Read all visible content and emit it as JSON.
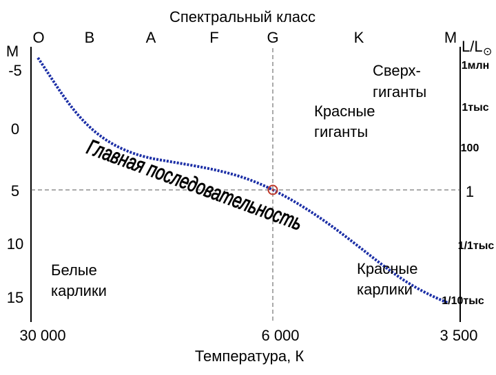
{
  "diagram": {
    "top_axis_title": "Спектральный класс",
    "spectral_classes": [
      "O",
      "B",
      "A",
      "F",
      "G",
      "K",
      "M"
    ],
    "left_axis_title": "M",
    "left_ticks": [
      "-5",
      "0",
      "5",
      "10",
      "15"
    ],
    "right_axis_title_main": "L/L",
    "right_axis_title_symbol": "⊙",
    "right_ticks": [
      "1млн",
      "1тыс",
      "100",
      "1",
      "1/1тыс",
      "1/10тыс"
    ],
    "bottom_ticks": [
      "30 000",
      "6 000",
      "3 500"
    ],
    "bottom_axis_title": "Температура, К",
    "labels": {
      "supergiants_line1": "Сверх-",
      "supergiants_line2": "гиганты",
      "red_giants_line1": "Красные",
      "red_giants_line2": "гиганты",
      "main_sequence": "Главная последовательность",
      "white_dwarfs_line1": "Белые",
      "white_dwarfs_line2": "карлики",
      "red_dwarfs_line1": "Красные",
      "red_dwarfs_line2": "карлики"
    },
    "colors": {
      "main_sequence_line": "#1c2fa6",
      "sun_marker": "#c0392b",
      "axes": "#000000",
      "guide_lines": "#555555"
    }
  }
}
